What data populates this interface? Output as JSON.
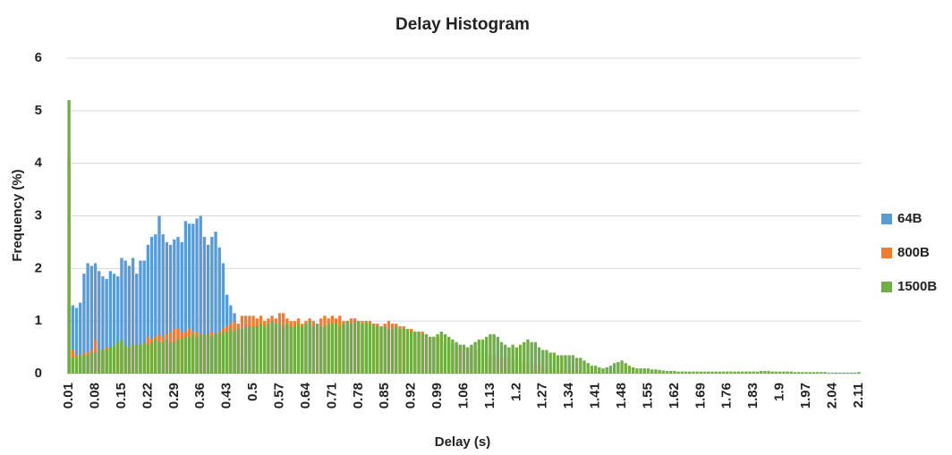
{
  "chart_data": {
    "type": "bar",
    "title": "Delay Histogram",
    "x_label": "Delay (s)",
    "y_label": "Frequency (%)",
    "ylim": [
      0,
      6
    ],
    "yticks": [
      0,
      1,
      2,
      3,
      4,
      5,
      6
    ],
    "grid": true,
    "legend": "right",
    "categories": [
      "0.01",
      null,
      null,
      null,
      null,
      null,
      null,
      "0.08",
      null,
      null,
      null,
      null,
      null,
      null,
      "0.15",
      null,
      null,
      null,
      null,
      null,
      null,
      "0.22",
      null,
      null,
      null,
      null,
      null,
      null,
      "0.29",
      null,
      null,
      null,
      null,
      null,
      null,
      "0.36",
      null,
      null,
      null,
      null,
      null,
      null,
      "0.43",
      null,
      null,
      null,
      null,
      null,
      null,
      "0.5",
      null,
      null,
      null,
      null,
      null,
      null,
      "0.57",
      null,
      null,
      null,
      null,
      null,
      null,
      "0.64",
      null,
      null,
      null,
      null,
      null,
      null,
      "0.71",
      null,
      null,
      null,
      null,
      null,
      null,
      "0.78",
      null,
      null,
      null,
      null,
      null,
      null,
      "0.85",
      null,
      null,
      null,
      null,
      null,
      null,
      "0.92",
      null,
      null,
      null,
      null,
      null,
      null,
      "0.99",
      null,
      null,
      null,
      null,
      null,
      null,
      "1.06",
      null,
      null,
      null,
      null,
      null,
      null,
      "1.13",
      null,
      null,
      null,
      null,
      null,
      null,
      "1.2",
      null,
      null,
      null,
      null,
      null,
      null,
      "1.27",
      null,
      null,
      null,
      null,
      null,
      null,
      "1.34",
      null,
      null,
      null,
      null,
      null,
      null,
      "1.41",
      null,
      null,
      null,
      null,
      null,
      null,
      "1.48",
      null,
      null,
      null,
      null,
      null,
      null,
      "1.55",
      null,
      null,
      null,
      null,
      null,
      null,
      "1.62",
      null,
      null,
      null,
      null,
      null,
      null,
      "1.69",
      null,
      null,
      null,
      null,
      null,
      null,
      "1.76",
      null,
      null,
      null,
      null,
      null,
      null,
      "1.83",
      null,
      null,
      null,
      null,
      null,
      null,
      "1.9",
      null,
      null,
      null,
      null,
      null,
      null,
      "1.97",
      null,
      null,
      null,
      null,
      null,
      null,
      "2.04",
      null,
      null,
      null,
      null,
      null,
      null,
      "2.11"
    ],
    "series": [
      {
        "name": "64B",
        "color": "#5b9bd5",
        "values": [
          1.35,
          1.3,
          1.25,
          1.35,
          1.9,
          2.1,
          2.05,
          2.1,
          1.95,
          1.85,
          1.8,
          1.95,
          1.9,
          1.85,
          2.2,
          2.15,
          2.05,
          2.2,
          1.9,
          2.15,
          2.15,
          2.45,
          2.6,
          2.65,
          3.0,
          2.65,
          2.5,
          2.45,
          2.55,
          2.6,
          2.5,
          2.9,
          2.85,
          2.85,
          2.95,
          3.0,
          2.6,
          2.45,
          2.6,
          2.7,
          2.4,
          2.1,
          1.5,
          1.3,
          1.15,
          0.9,
          0.3,
          0.1,
          0.05,
          0.05,
          0,
          0,
          0,
          0,
          0,
          0,
          0,
          0,
          0,
          0,
          0,
          0,
          0,
          0,
          0,
          0,
          0,
          0,
          0,
          0,
          0,
          0,
          0,
          0,
          0,
          0,
          0,
          0,
          0,
          0,
          0,
          0,
          0,
          0,
          0,
          0,
          0,
          0,
          0,
          0,
          0,
          0,
          0,
          0,
          0,
          0,
          0,
          0,
          0,
          0,
          0,
          0,
          0,
          0,
          0,
          0,
          0,
          0,
          0,
          0,
          0,
          0,
          0,
          0,
          0,
          0,
          0,
          0,
          0,
          0,
          0,
          0,
          0,
          0,
          0,
          0,
          0,
          0,
          0,
          0,
          0,
          0,
          0,
          0,
          0,
          0,
          0,
          0,
          0,
          0,
          0,
          0,
          0,
          0,
          0,
          0,
          0,
          0,
          0,
          0,
          0,
          0,
          0,
          0,
          0,
          0,
          0,
          0,
          0,
          0,
          0,
          0,
          0,
          0,
          0,
          0,
          0,
          0,
          0,
          0,
          0,
          0,
          0,
          0,
          0,
          0,
          0,
          0,
          0,
          0,
          0,
          0,
          0,
          0,
          0,
          0,
          0,
          0,
          0,
          0,
          0,
          0,
          0,
          0,
          0,
          0,
          0,
          0,
          0,
          0,
          0,
          0,
          0,
          0,
          0,
          0,
          0,
          0,
          0,
          0,
          0
        ]
      },
      {
        "name": "800B",
        "color": "#ed7d31",
        "values": [
          4.1,
          0.45,
          0.35,
          0.35,
          0.4,
          0.4,
          0.45,
          0.65,
          0.45,
          0.45,
          0.5,
          0.5,
          0.5,
          0.45,
          0.5,
          0.55,
          0.5,
          0.5,
          0.55,
          0.55,
          0.6,
          0.7,
          0.65,
          0.7,
          0.75,
          0.7,
          0.75,
          0.8,
          0.85,
          0.85,
          0.8,
          0.8,
          0.85,
          0.8,
          0.8,
          0.75,
          0.75,
          0.75,
          0.8,
          0.75,
          0.8,
          0.85,
          0.9,
          0.95,
          1.0,
          0.95,
          1.1,
          1.1,
          1.1,
          1.1,
          1.05,
          1.1,
          1.0,
          1.05,
          1.1,
          1.05,
          1.15,
          1.15,
          1.05,
          1.0,
          1.0,
          1.05,
          0.95,
          1.0,
          1.05,
          1.0,
          0.95,
          1.05,
          1.1,
          1.05,
          1.1,
          1.05,
          1.1,
          1.0,
          1.0,
          1.05,
          1.05,
          1.0,
          1.0,
          0.95,
          1.0,
          0.95,
          0.95,
          0.9,
          0.95,
          1.0,
          0.95,
          0.95,
          0.9,
          0.9,
          0.85,
          0.85,
          0.8,
          0.8,
          0.8,
          0.75,
          0.7,
          0.7,
          0.7,
          0.7,
          0.6,
          0.6,
          0.55,
          0.55,
          0.55,
          0.5,
          0.5,
          0.5,
          0.45,
          0.45,
          0.4,
          0.4,
          0.35,
          0.35,
          0.3,
          0.3,
          0.3,
          0.3,
          0.3,
          0.25,
          0.25,
          0.2,
          0.2,
          0.2,
          0.15,
          0.15,
          0.1,
          0.1,
          0.1,
          0.08,
          0.07,
          0.06,
          0.06,
          0.05,
          0.05,
          0.05,
          0.05,
          0.04,
          0.04,
          0.03,
          0.03,
          0.02,
          0.02,
          0.01,
          0.01,
          0,
          0,
          0,
          0,
          0,
          0,
          0,
          0,
          0,
          0,
          0,
          0,
          0,
          0,
          0,
          0,
          0,
          0,
          0,
          0,
          0,
          0,
          0,
          0,
          0,
          0,
          0,
          0,
          0,
          0,
          0,
          0,
          0,
          0,
          0,
          0,
          0,
          0,
          0,
          0,
          0,
          0,
          0,
          0,
          0,
          0,
          0,
          0,
          0,
          0,
          0,
          0,
          0,
          0,
          0,
          0,
          0,
          0,
          0,
          0,
          0,
          0,
          0,
          0,
          0,
          0
        ]
      },
      {
        "name": "1500B",
        "color": "#70ad47",
        "values": [
          5.2,
          0.3,
          0.3,
          0.35,
          0.35,
          0.35,
          0.4,
          0.4,
          0.45,
          0.45,
          0.45,
          0.5,
          0.55,
          0.6,
          0.65,
          0.55,
          0.5,
          0.55,
          0.55,
          0.55,
          0.6,
          0.55,
          0.6,
          0.65,
          0.6,
          0.6,
          0.65,
          0.6,
          0.6,
          0.65,
          0.65,
          0.7,
          0.7,
          0.75,
          0.7,
          0.75,
          0.75,
          0.75,
          0.7,
          0.75,
          0.75,
          0.8,
          0.8,
          0.85,
          0.8,
          0.85,
          0.85,
          0.9,
          0.9,
          0.9,
          0.9,
          0.95,
          0.9,
          0.95,
          1.0,
          0.95,
          0.95,
          0.9,
          0.95,
          0.9,
          0.9,
          0.95,
          0.9,
          0.95,
          1.0,
          0.9,
          0.95,
          0.9,
          0.9,
          0.95,
          0.95,
          0.95,
          0.9,
          0.95,
          1.0,
          0.95,
          1.0,
          1.0,
          0.95,
          1.0,
          0.95,
          0.95,
          0.9,
          0.9,
          0.9,
          0.85,
          0.85,
          0.9,
          0.85,
          0.85,
          0.85,
          0.8,
          0.8,
          0.8,
          0.75,
          0.75,
          0.7,
          0.7,
          0.75,
          0.8,
          0.75,
          0.7,
          0.65,
          0.6,
          0.55,
          0.55,
          0.5,
          0.55,
          0.6,
          0.65,
          0.65,
          0.7,
          0.75,
          0.75,
          0.7,
          0.6,
          0.55,
          0.5,
          0.55,
          0.5,
          0.55,
          0.6,
          0.65,
          0.6,
          0.6,
          0.5,
          0.45,
          0.45,
          0.4,
          0.4,
          0.35,
          0.35,
          0.35,
          0.35,
          0.35,
          0.3,
          0.3,
          0.25,
          0.2,
          0.15,
          0.15,
          0.12,
          0.1,
          0.12,
          0.15,
          0.2,
          0.22,
          0.25,
          0.2,
          0.15,
          0.12,
          0.1,
          0.1,
          0.1,
          0.1,
          0.08,
          0.08,
          0.07,
          0.06,
          0.05,
          0.05,
          0.05,
          0.04,
          0.04,
          0.04,
          0.04,
          0.04,
          0.04,
          0.04,
          0.04,
          0.04,
          0.04,
          0.04,
          0.04,
          0.04,
          0.04,
          0.04,
          0.04,
          0.04,
          0.04,
          0.04,
          0.04,
          0.04,
          0.04,
          0.05,
          0.05,
          0.05,
          0.04,
          0.04,
          0.04,
          0.04,
          0.04,
          0.04,
          0.03,
          0.03,
          0.03,
          0.03,
          0.03,
          0.03,
          0.03,
          0.03,
          0.03,
          0.02,
          0.02,
          0.02,
          0.02,
          0.02,
          0.02,
          0.02,
          0.02,
          0.03
        ]
      }
    ]
  }
}
